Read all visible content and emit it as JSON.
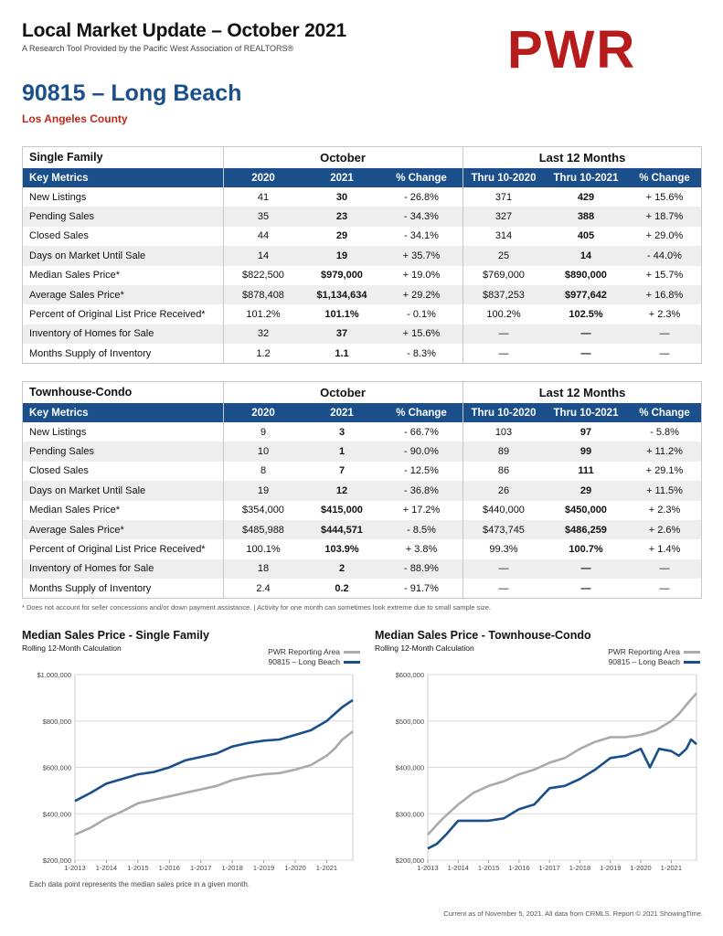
{
  "header": {
    "title": "Local Market Update – October 2021",
    "subtitle": "A Research Tool Provided by the Pacific West Association of REALTORS®",
    "logo": "PWR"
  },
  "area": {
    "title": "90815 – Long Beach",
    "county": "Los Angeles County"
  },
  "colors": {
    "accent_blue": "#1a4f8b",
    "accent_red": "#c0281a",
    "logo_red": "#b71c1c",
    "series_gray": "#aaaaaa"
  },
  "single_family": {
    "section": "Single Family",
    "group1": "October",
    "group2": "Last 12 Months",
    "headers": [
      "Key Metrics",
      "2020",
      "2021",
      "% Change",
      "Thru 10-2020",
      "Thru 10-2021",
      "% Change"
    ],
    "rows": [
      [
        "New Listings",
        "41",
        "30",
        "- 26.8%",
        "371",
        "429",
        "+ 15.6%"
      ],
      [
        "Pending Sales",
        "35",
        "23",
        "- 34.3%",
        "327",
        "388",
        "+ 18.7%"
      ],
      [
        "Closed Sales",
        "44",
        "29",
        "- 34.1%",
        "314",
        "405",
        "+ 29.0%"
      ],
      [
        "Days on Market Until Sale",
        "14",
        "19",
        "+ 35.7%",
        "25",
        "14",
        "- 44.0%"
      ],
      [
        "Median Sales Price*",
        "$822,500",
        "$979,000",
        "+ 19.0%",
        "$769,000",
        "$890,000",
        "+ 15.7%"
      ],
      [
        "Average Sales Price*",
        "$878,408",
        "$1,134,634",
        "+ 29.2%",
        "$837,253",
        "$977,642",
        "+ 16.8%"
      ],
      [
        "Percent of Original List Price Received*",
        "101.2%",
        "101.1%",
        "- 0.1%",
        "100.2%",
        "102.5%",
        "+ 2.3%"
      ],
      [
        "Inventory of Homes for Sale",
        "32",
        "37",
        "+ 15.6%",
        "—",
        "—",
        "—"
      ],
      [
        "Months Supply of Inventory",
        "1.2",
        "1.1",
        "- 8.3%",
        "—",
        "—",
        "—"
      ]
    ]
  },
  "townhouse_condo": {
    "section": "Townhouse-Condo",
    "group1": "October",
    "group2": "Last 12 Months",
    "headers": [
      "Key Metrics",
      "2020",
      "2021",
      "% Change",
      "Thru 10-2020",
      "Thru 10-2021",
      "% Change"
    ],
    "rows": [
      [
        "New Listings",
        "9",
        "3",
        "- 66.7%",
        "103",
        "97",
        "- 5.8%"
      ],
      [
        "Pending Sales",
        "10",
        "1",
        "- 90.0%",
        "89",
        "99",
        "+ 11.2%"
      ],
      [
        "Closed Sales",
        "8",
        "7",
        "- 12.5%",
        "86",
        "111",
        "+ 29.1%"
      ],
      [
        "Days on Market Until Sale",
        "19",
        "12",
        "- 36.8%",
        "26",
        "29",
        "+ 11.5%"
      ],
      [
        "Median Sales Price*",
        "$354,000",
        "$415,000",
        "+ 17.2%",
        "$440,000",
        "$450,000",
        "+ 2.3%"
      ],
      [
        "Average Sales Price*",
        "$485,988",
        "$444,571",
        "- 8.5%",
        "$473,745",
        "$486,259",
        "+ 2.6%"
      ],
      [
        "Percent of Original List Price Received*",
        "100.1%",
        "103.9%",
        "+ 3.8%",
        "99.3%",
        "100.7%",
        "+ 1.4%"
      ],
      [
        "Inventory of Homes for Sale",
        "18",
        "2",
        "- 88.9%",
        "—",
        "—",
        "—"
      ],
      [
        "Months Supply of Inventory",
        "2.4",
        "0.2",
        "- 91.7%",
        "—",
        "—",
        "—"
      ]
    ]
  },
  "footnote": "* Does not account for seller concessions and/or down payment assistance. | Activity for one month can sometimes look extreme due to small sample size.",
  "chart_data": [
    {
      "type": "line",
      "title": "Median Sales Price - Single Family",
      "subtitle": "Rolling 12-Month Calculation",
      "x_ticks": [
        "1-2013",
        "1-2014",
        "1-2015",
        "1-2016",
        "1-2017",
        "1-2018",
        "1-2019",
        "1-2020",
        "1-2021"
      ],
      "y_ticks": [
        "$200,000",
        "$400,000",
        "$600,000",
        "$800,000",
        "$1,000,000"
      ],
      "ylim": [
        200000,
        1000000
      ],
      "xlim": [
        2013.0,
        2021.83
      ],
      "grid": true,
      "legend_placement": "top-right",
      "series": [
        {
          "name": "PWR Reporting Area",
          "color": "#aaaaaa",
          "x": [
            2013.0,
            2013.5,
            2014.0,
            2014.5,
            2015.0,
            2015.5,
            2016.0,
            2016.5,
            2017.0,
            2017.5,
            2018.0,
            2018.5,
            2019.0,
            2019.5,
            2020.0,
            2020.5,
            2021.0,
            2021.25,
            2021.5,
            2021.83
          ],
          "values": [
            310000,
            340000,
            380000,
            410000,
            445000,
            460000,
            475000,
            490000,
            505000,
            520000,
            545000,
            560000,
            570000,
            575000,
            590000,
            610000,
            650000,
            680000,
            720000,
            755000
          ]
        },
        {
          "name": "90815 – Long Beach",
          "color": "#1a4f8b",
          "x": [
            2013.0,
            2013.5,
            2014.0,
            2014.5,
            2015.0,
            2015.5,
            2016.0,
            2016.5,
            2017.0,
            2017.5,
            2018.0,
            2018.5,
            2019.0,
            2019.5,
            2020.0,
            2020.5,
            2021.0,
            2021.25,
            2021.5,
            2021.83
          ],
          "values": [
            455000,
            490000,
            530000,
            550000,
            570000,
            580000,
            600000,
            630000,
            645000,
            660000,
            690000,
            705000,
            715000,
            720000,
            740000,
            760000,
            800000,
            830000,
            860000,
            890000
          ]
        }
      ]
    },
    {
      "type": "line",
      "title": "Median Sales Price - Townhouse-Condo",
      "subtitle": "Rolling 12-Month Calculation",
      "x_ticks": [
        "1-2013",
        "1-2014",
        "1-2015",
        "1-2016",
        "1-2017",
        "1-2018",
        "1-2019",
        "1-2020",
        "1-2021"
      ],
      "y_ticks": [
        "$200,000",
        "$300,000",
        "$400,000",
        "$500,000",
        "$600,000"
      ],
      "ylim": [
        200000,
        600000
      ],
      "xlim": [
        2013.0,
        2021.83
      ],
      "grid": true,
      "legend_placement": "top-right",
      "series": [
        {
          "name": "PWR Reporting Area",
          "color": "#aaaaaa",
          "x": [
            2013.0,
            2013.5,
            2014.0,
            2014.5,
            2015.0,
            2015.5,
            2016.0,
            2016.5,
            2017.0,
            2017.5,
            2018.0,
            2018.5,
            2019.0,
            2019.5,
            2020.0,
            2020.5,
            2021.0,
            2021.25,
            2021.5,
            2021.83
          ],
          "values": [
            255000,
            290000,
            320000,
            345000,
            360000,
            370000,
            385000,
            395000,
            410000,
            420000,
            440000,
            455000,
            465000,
            465000,
            470000,
            480000,
            500000,
            515000,
            535000,
            560000
          ]
        },
        {
          "name": "90815 – Long Beach",
          "color": "#1a4f8b",
          "x": [
            2013.0,
            2013.3,
            2013.6,
            2014.0,
            2014.5,
            2015.0,
            2015.5,
            2016.0,
            2016.5,
            2017.0,
            2017.5,
            2018.0,
            2018.5,
            2019.0,
            2019.5,
            2020.0,
            2020.3,
            2020.6,
            2021.0,
            2021.25,
            2021.5,
            2021.65,
            2021.83
          ],
          "values": [
            225000,
            235000,
            255000,
            285000,
            285000,
            285000,
            290000,
            310000,
            320000,
            355000,
            360000,
            375000,
            395000,
            420000,
            425000,
            440000,
            400000,
            440000,
            435000,
            425000,
            440000,
            460000,
            450000
          ]
        }
      ]
    }
  ],
  "bottom_note": "Each data point represents the median sales price in a given month.",
  "current_note": "Current as of November 5, 2021. All data from CRMLS. Report © 2021 ShowingTime."
}
